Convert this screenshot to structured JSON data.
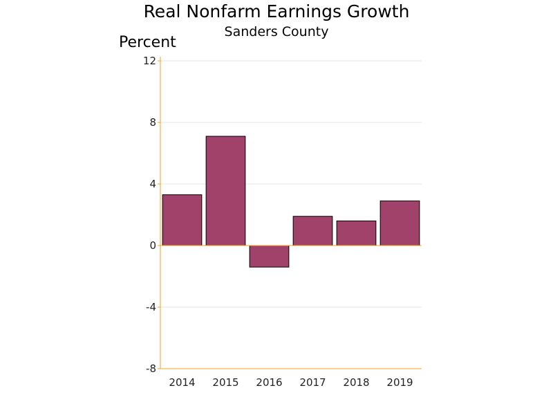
{
  "chart_data": {
    "type": "bar",
    "title": "Real Nonfarm Earnings Growth",
    "subtitle": "Sanders County",
    "ylabel": "Percent",
    "xlabel": "",
    "categories": [
      "2014",
      "2015",
      "2016",
      "2017",
      "2018",
      "2019"
    ],
    "values": [
      3.3,
      7.1,
      -1.4,
      1.9,
      1.6,
      2.9
    ],
    "ylim": [
      -8,
      12
    ],
    "yticks": [
      -8,
      -4,
      0,
      4,
      8,
      12
    ],
    "grid": true,
    "colors": {
      "bar": "#a0426a",
      "axis": "#f0a020",
      "grid": "#e4e4e4"
    }
  }
}
